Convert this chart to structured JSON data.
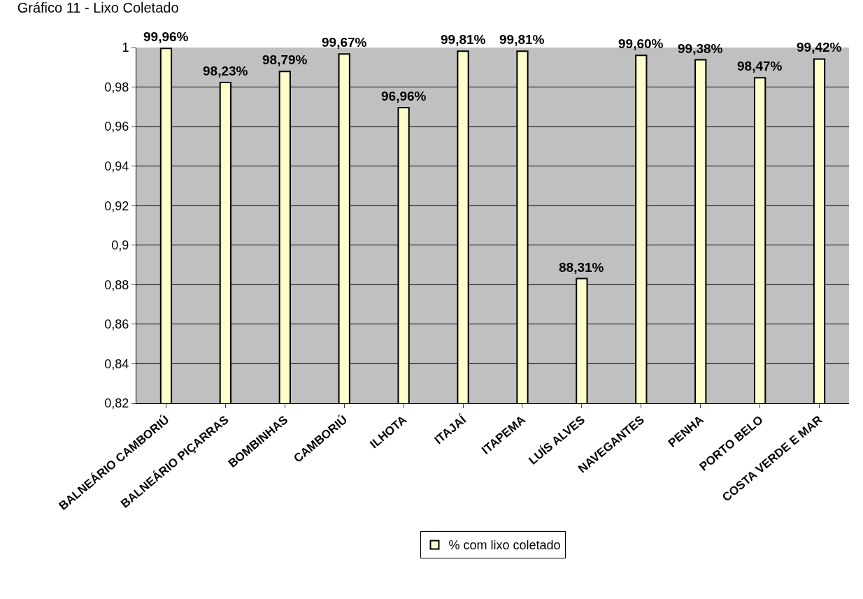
{
  "chart_data": {
    "type": "bar",
    "title": "Gráfico 11 - Lixo Coletado",
    "categories": [
      "BALNEÁRIO CAMBORIÚ",
      "BALNEÁRIO PIÇARRAS",
      "BOMBINHAS",
      "CAMBORIÚ",
      "ILHOTA",
      "ITAJAÍ",
      "ITAPEMA",
      "LUÍS ALVES",
      "NAVEGANTES",
      "PENHA",
      "PORTO BELO",
      "COSTA VERDE E MAR"
    ],
    "series": [
      {
        "name": "% com lixo coletado",
        "color": "#ffffcc",
        "values": [
          0.9996,
          0.9823,
          0.9879,
          0.9967,
          0.9696,
          0.9981,
          0.9981,
          0.8831,
          0.996,
          0.9938,
          0.9847,
          0.9942
        ],
        "value_labels": [
          "99,96%",
          "98,23%",
          "98,79%",
          "99,67%",
          "96,96%",
          "99,81%",
          "99,81%",
          "88,31%",
          "99,60%",
          "99,38%",
          "98,47%",
          "99,42%"
        ]
      }
    ],
    "ylim": [
      0.82,
      1
    ],
    "yticks": [
      {
        "value": 0.82,
        "label": "0,82"
      },
      {
        "value": 0.84,
        "label": "0,84"
      },
      {
        "value": 0.86,
        "label": "0,86"
      },
      {
        "value": 0.88,
        "label": "0,88"
      },
      {
        "value": 0.9,
        "label": "0,9"
      },
      {
        "value": 0.92,
        "label": "0,92"
      },
      {
        "value": 0.94,
        "label": "0,94"
      },
      {
        "value": 0.96,
        "label": "0,96"
      },
      {
        "value": 0.98,
        "label": "0,98"
      },
      {
        "value": 1,
        "label": "1"
      }
    ],
    "grid": "y",
    "legend": "bottom"
  }
}
